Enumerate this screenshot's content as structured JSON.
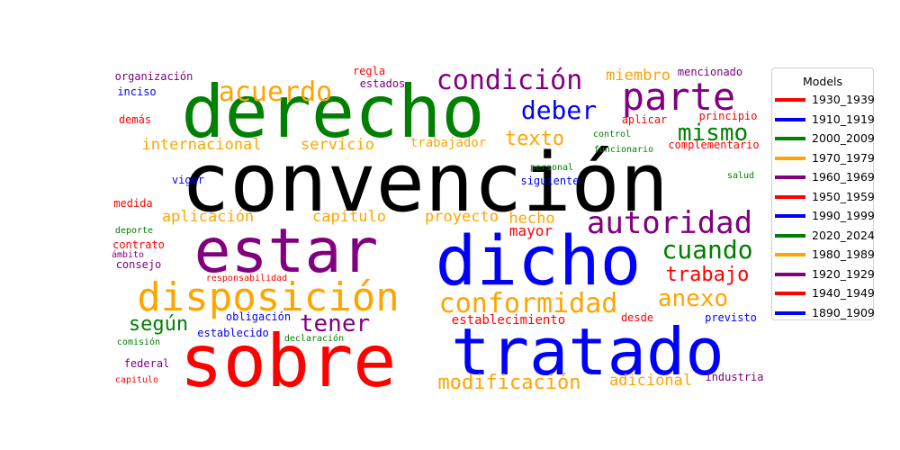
{
  "chart_data": {
    "type": "wordcloud",
    "legend": {
      "title": "Models",
      "placement": "right",
      "entries": [
        {
          "label": "1930_1939",
          "color": "#ff0000"
        },
        {
          "label": "1910_1919",
          "color": "#0000ff"
        },
        {
          "label": "2000_2009",
          "color": "#008000"
        },
        {
          "label": "1970_1979",
          "color": "#ffa500"
        },
        {
          "label": "1960_1969",
          "color": "#800080"
        },
        {
          "label": "1950_1959",
          "color": "#ff0000"
        },
        {
          "label": "1990_1999",
          "color": "#0000ff"
        },
        {
          "label": "2020_2024",
          "color": "#008000"
        },
        {
          "label": "1980_1989",
          "color": "#ffa500"
        },
        {
          "label": "1920_1929",
          "color": "#800080"
        },
        {
          "label": "1940_1949",
          "color": "#ff0000"
        },
        {
          "label": "1890_1909",
          "color": "#0000ff"
        }
      ]
    },
    "words": [
      {
        "text": "convención",
        "color": "#000000"
      },
      {
        "text": "derecho",
        "color": "#008000"
      },
      {
        "text": "sobre",
        "color": "#ff0000"
      },
      {
        "text": "tratado",
        "color": "#0000ff"
      },
      {
        "text": "dicho",
        "color": "#0000ff"
      },
      {
        "text": "estar",
        "color": "#800080"
      },
      {
        "text": "disposición",
        "color": "#ffa500"
      },
      {
        "text": "parte",
        "color": "#800080"
      },
      {
        "text": "acuerdo",
        "color": "#ffa500"
      },
      {
        "text": "condición",
        "color": "#800080"
      },
      {
        "text": "autoridad",
        "color": "#800080"
      },
      {
        "text": "conformidad",
        "color": "#ffa500"
      },
      {
        "text": "cuando",
        "color": "#008000"
      },
      {
        "text": "deber",
        "color": "#0000ff"
      },
      {
        "text": "mismo",
        "color": "#008000"
      },
      {
        "text": "anexo",
        "color": "#ffa500"
      },
      {
        "text": "trabajo",
        "color": "#ff0000"
      },
      {
        "text": "tener",
        "color": "#800080"
      },
      {
        "text": "texto",
        "color": "#ffa500"
      },
      {
        "text": "según",
        "color": "#008000"
      },
      {
        "text": "modificación",
        "color": "#ffa500"
      },
      {
        "text": "internacional",
        "color": "#ffa500"
      },
      {
        "text": "servicio",
        "color": "#ffa500"
      },
      {
        "text": "aplicación",
        "color": "#ffa500"
      },
      {
        "text": "capítulo",
        "color": "#ffa500"
      },
      {
        "text": "proyecto",
        "color": "#ffa500"
      },
      {
        "text": "hecho",
        "color": "#ffa500"
      },
      {
        "text": "adicional",
        "color": "#ffa500"
      },
      {
        "text": "miembro",
        "color": "#ffa500"
      },
      {
        "text": "mayor",
        "color": "#ff0000"
      },
      {
        "text": "establecimiento",
        "color": "#ff0000"
      },
      {
        "text": "trabajador",
        "color": "#ffa500"
      },
      {
        "text": "organización",
        "color": "#800080"
      },
      {
        "text": "regla",
        "color": "#ff0000"
      },
      {
        "text": "estados",
        "color": "#800080"
      },
      {
        "text": "mencionado",
        "color": "#800080"
      },
      {
        "text": "inciso",
        "color": "#0000ff"
      },
      {
        "text": "demás",
        "color": "#ff0000"
      },
      {
        "text": "aplicar",
        "color": "#ff0000"
      },
      {
        "text": "principio",
        "color": "#ff0000"
      },
      {
        "text": "control",
        "color": "#008000"
      },
      {
        "text": "funcionario",
        "color": "#008000"
      },
      {
        "text": "complementario",
        "color": "#ff0000"
      },
      {
        "text": "personal",
        "color": "#008000"
      },
      {
        "text": "salud",
        "color": "#008000"
      },
      {
        "text": "vigor",
        "color": "#0000ff"
      },
      {
        "text": "siguiente",
        "color": "#0000ff"
      },
      {
        "text": "medida",
        "color": "#ff0000"
      },
      {
        "text": "deporte",
        "color": "#008000"
      },
      {
        "text": "contrato",
        "color": "#ff0000"
      },
      {
        "text": "ámbito",
        "color": "#800080"
      },
      {
        "text": "consejo",
        "color": "#800080"
      },
      {
        "text": "responsabilidad",
        "color": "#ff0000"
      },
      {
        "text": "obligación",
        "color": "#0000ff"
      },
      {
        "text": "desde",
        "color": "#ff0000"
      },
      {
        "text": "previsto",
        "color": "#0000ff"
      },
      {
        "text": "establecido",
        "color": "#0000ff"
      },
      {
        "text": "comisión",
        "color": "#008000"
      },
      {
        "text": "declaración",
        "color": "#008000"
      },
      {
        "text": "federal",
        "color": "#800080"
      },
      {
        "text": "capitulo",
        "color": "#ff0000"
      },
      {
        "text": "industria",
        "color": "#800080"
      }
    ]
  }
}
